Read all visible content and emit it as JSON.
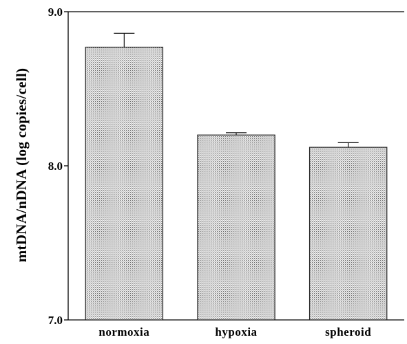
{
  "chart_data": {
    "type": "bar",
    "title": "",
    "xlabel": "",
    "ylabel": "mtDNA/nDNA (log copies/cell)",
    "categories": [
      "normoxia",
      "hypoxia",
      "spheroid"
    ],
    "values": [
      8.77,
      8.2,
      8.12
    ],
    "errors": [
      0.09,
      0.015,
      0.03
    ],
    "ylim": [
      7.0,
      9.0
    ],
    "yticks": [
      "7.0",
      "8.0",
      "9.0"
    ],
    "grid": false,
    "legend": "none",
    "colors": {
      "bar_fill_dot": "#6e6e6e",
      "bar_fill_bg": "#f4f4f4",
      "axis": "#000000"
    }
  }
}
